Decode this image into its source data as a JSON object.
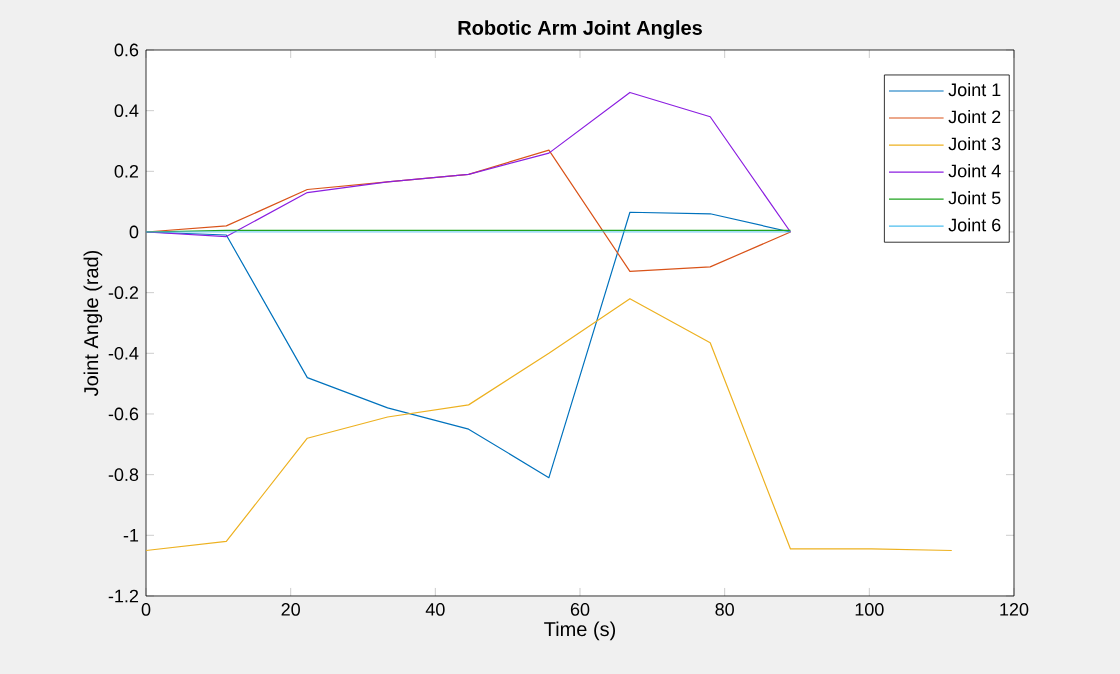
{
  "chart_data": {
    "type": "line",
    "title": "Robotic Arm Joint Angles",
    "xlabel": "Time (s)",
    "ylabel": "Joint Angle (rad)",
    "x": [
      0,
      11.1,
      22.3,
      33.4,
      44.6,
      55.7,
      66.9,
      78.0,
      89.1,
      100.3,
      111.4
    ],
    "series": [
      {
        "name": "Joint 1",
        "color": "#0072bd",
        "values": [
          0,
          -0.01,
          -0.48,
          -0.58,
          -0.65,
          -0.81,
          0.065,
          0.06,
          0,
          null,
          null
        ]
      },
      {
        "name": "Joint 2",
        "color": "#d95319",
        "values": [
          0,
          0.02,
          0.14,
          0.165,
          0.19,
          0.27,
          -0.13,
          -0.115,
          0,
          null,
          null
        ]
      },
      {
        "name": "Joint 3",
        "color": "#edb120",
        "values": [
          -1.05,
          -1.02,
          -0.68,
          -0.61,
          -0.57,
          -0.4,
          -0.22,
          -0.365,
          -1.045,
          -1.045,
          -1.05
        ]
      },
      {
        "name": "Joint 4",
        "color": "#8b1ee0",
        "values": [
          0,
          -0.015,
          0.13,
          0.165,
          0.19,
          0.26,
          0.46,
          0.38,
          0,
          null,
          null
        ]
      },
      {
        "name": "Joint 5",
        "color": "#1fa31f",
        "values": [
          0,
          0.005,
          0.005,
          0.005,
          0.005,
          0.005,
          0.005,
          0.005,
          0.005,
          null,
          null
        ]
      },
      {
        "name": "Joint 6",
        "color": "#4dbeee",
        "values": [
          0,
          0,
          0,
          0,
          0,
          0,
          0,
          0,
          0,
          null,
          null
        ]
      }
    ],
    "xlim": [
      0,
      120
    ],
    "ylim": [
      -1.2,
      0.6
    ],
    "xticks": [
      0,
      20,
      40,
      60,
      80,
      100,
      120
    ],
    "yticks": [
      -1.2,
      -1,
      -0.8,
      -0.6,
      -0.4,
      -0.2,
      0,
      0.2,
      0.4,
      0.6
    ],
    "legend": "top right",
    "grid": false,
    "marker": "none",
    "line_style": "solid"
  }
}
